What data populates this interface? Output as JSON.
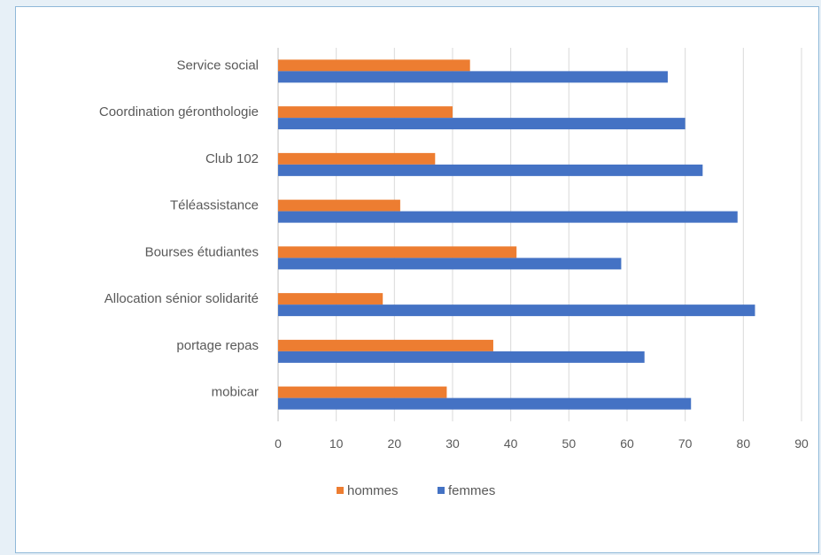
{
  "chart_data": {
    "type": "bar",
    "orientation": "horizontal",
    "categories": [
      "Service social",
      "Coordination géronthologie",
      "Club 102",
      "Téléassistance",
      "Bourses étudiantes",
      "Allocation sénior solidarité",
      "portage repas",
      "mobicar"
    ],
    "series": [
      {
        "name": "hommes",
        "color": "#ed7d31",
        "values": [
          33,
          30,
          27,
          21,
          41,
          18,
          37,
          29
        ]
      },
      {
        "name": "femmes",
        "color": "#4472c4",
        "values": [
          67,
          70,
          73,
          79,
          59,
          82,
          63,
          71
        ]
      }
    ],
    "xlim": [
      0,
      90
    ],
    "xticks": [
      "0",
      "10",
      "20",
      "30",
      "40",
      "50",
      "60",
      "70",
      "80",
      "90"
    ],
    "grid": "vertical",
    "legend": "bottom"
  }
}
